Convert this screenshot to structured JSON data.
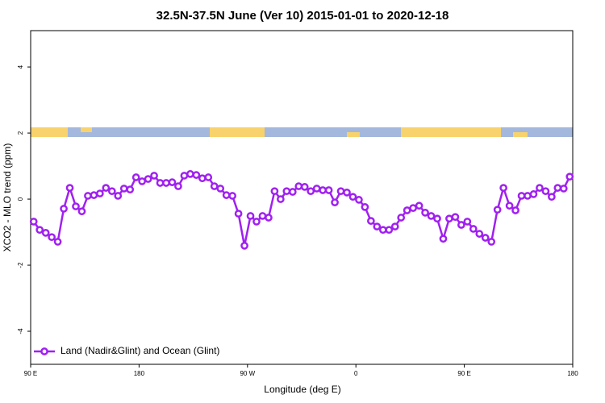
{
  "chart_data": {
    "type": "line",
    "title": "32.5N-37.5N June (Ver 10)   2015-01-01 to 2020-12-18",
    "x_label": "Longitude (deg E)",
    "y_label": "XCO2 - MLO trend (ppm)",
    "xlim": [
      90,
      540
    ],
    "ylim": [
      -5,
      5.1
    ],
    "xticks": [
      {
        "value": 90,
        "label": "90 E"
      },
      180,
      {
        "value": 270,
        "label": "90 W"
      },
      {
        "value": 360,
        "label": "0"
      },
      {
        "value": 450,
        "label": "90 E"
      },
      {
        "value": 540,
        "label": "180"
      }
    ],
    "yticks": [
      -4,
      -2,
      0,
      2,
      4
    ],
    "legend_position": "bottom-left",
    "x": [
      92.5,
      97.5,
      102.5,
      107.5,
      112.5,
      117.5,
      122.5,
      127.5,
      132.5,
      137.5,
      142.5,
      147.5,
      152.5,
      157.5,
      162.5,
      167.5,
      172.5,
      177.5,
      182.5,
      187.5,
      192.5,
      197.5,
      202.5,
      207.5,
      212.5,
      217.5,
      222.5,
      227.5,
      232.5,
      237.5,
      242.5,
      247.5,
      252.5,
      257.5,
      262.5,
      267.5,
      272.5,
      277.5,
      282.5,
      287.5,
      292.5,
      297.5,
      302.5,
      307.5,
      312.5,
      317.5,
      322.5,
      327.5,
      332.5,
      337.5,
      342.5,
      347.5,
      352.5,
      357.5,
      362.5,
      367.5,
      372.5,
      377.5,
      382.5,
      387.5,
      392.5,
      397.5,
      402.5,
      407.5,
      412.5,
      417.5,
      422.5,
      427.5,
      432.5,
      437.5,
      442.5,
      447.5,
      452.5,
      457.5,
      462.5,
      467.5,
      472.5,
      477.5,
      482.5,
      487.5,
      492.5,
      497.5,
      502.5,
      507.5,
      512.5,
      517.5,
      522.5,
      527.5,
      532.5,
      537.5
    ],
    "series": [
      {
        "name": "Land (Nadir&Glint) and Ocean (Glint)",
        "color": "#a020f0",
        "values": [
          -0.68,
          -0.93,
          -1.02,
          -1.15,
          -1.29,
          -0.29,
          0.34,
          -0.22,
          -0.37,
          0.1,
          0.12,
          0.17,
          0.34,
          0.24,
          0.1,
          0.32,
          0.29,
          0.66,
          0.54,
          0.61,
          0.71,
          0.49,
          0.49,
          0.51,
          0.39,
          0.71,
          0.76,
          0.73,
          0.63,
          0.66,
          0.39,
          0.32,
          0.12,
          0.1,
          -0.44,
          -1.41,
          -0.51,
          -0.68,
          -0.51,
          -0.56,
          0.24,
          0,
          0.24,
          0.22,
          0.39,
          0.37,
          0.24,
          0.32,
          0.27,
          0.27,
          -0.1,
          0.24,
          0.2,
          0.07,
          -0.02,
          -0.24,
          -0.66,
          -0.83,
          -0.93,
          -0.93,
          -0.83,
          -0.56,
          -0.34,
          -0.27,
          -0.2,
          -0.41,
          -0.51,
          -0.59,
          -1.2,
          -0.59,
          -0.54,
          -0.78,
          -0.68,
          -0.9,
          -1.05,
          -1.17,
          -1.29,
          -0.32,
          0.34,
          -0.2,
          -0.34,
          0.1,
          0.1,
          0.15,
          0.34,
          0.24,
          0.07,
          0.34,
          0.32,
          0.68
        ]
      }
    ]
  }
}
